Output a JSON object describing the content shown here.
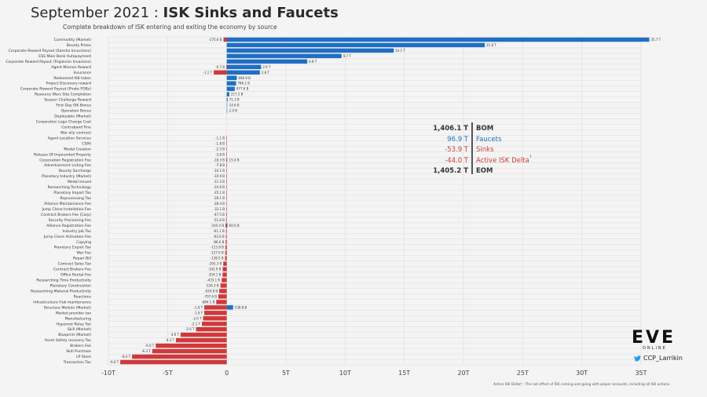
{
  "header": {
    "title_prefix": "September 2021 : ",
    "title_bold": "ISK Sinks and Faucets",
    "subtitle": "Complete breakdown of ISK entering and exiting the economy by source"
  },
  "summary": {
    "rows": [
      {
        "value": "1,406.1 T",
        "label": "BOM",
        "color": "#333333"
      },
      {
        "value": "96.9 T",
        "label": "Faucets",
        "color": "#1f6fc5"
      },
      {
        "value": "-53.9 T",
        "label": "Sinks",
        "color": "#d0393b"
      },
      {
        "value": "-44.0 T",
        "label": "Active ISK Delta",
        "sup": "†",
        "color": "#d0393b"
      },
      {
        "value": "1,405.2 T",
        "label": "EOM",
        "color": "#333333"
      }
    ]
  },
  "branding": {
    "logo": "EVE",
    "logo_sub": "ONLINE",
    "handle": "CCP_Larrikin",
    "handle_icon": "twitter-bird-icon"
  },
  "footnote": "Active ISK Delta† : The net effect of ISK coming and going with player accounts, including all ISK actions.",
  "colors": {
    "faucet": "#1f6fc5",
    "sink": "#d0393b",
    "grid": "#dcdcdc",
    "background": "#f4f4f4"
  },
  "chart_data": {
    "type": "bar",
    "orientation": "horizontal",
    "units": "trillions ISK",
    "xlim": [
      -10,
      35
    ],
    "xticks": [
      -10,
      -5,
      0,
      5,
      10,
      15,
      20,
      25,
      30,
      35
    ],
    "xtick_labels": [
      "-10T",
      "-5T",
      "0",
      "5T",
      "10T",
      "15T",
      "20T",
      "25T",
      "30T",
      "35T"
    ],
    "grid": true,
    "rows": [
      {
        "name": "Commodity (Market)",
        "faucet": 35.7,
        "faucet_label": "35.7 T",
        "sink": -0.2756,
        "sink_label": "-275.6 B"
      },
      {
        "name": "Bounty Prizes",
        "faucet": 21.8,
        "faucet_label": "21.8 T"
      },
      {
        "name": "Corporate Reward Payout (Sansha Incursions)",
        "faucet": 14.1,
        "faucet_label": "14.1 T"
      },
      {
        "name": "ESS Main Bank Autopayment",
        "faucet": 9.7,
        "faucet_label": "9.7 T"
      },
      {
        "name": "Corporate Reward Payout (Triglavian Invasions)",
        "faucet": 6.8,
        "faucet_label": "6.8 T"
      },
      {
        "name": "Agent Mission Reward",
        "faucet": 2.9,
        "faucet_label": "2.9 T",
        "sink": -0.0007,
        "sink_label": "-0.7 B"
      },
      {
        "name": "Insurance",
        "faucet": 2.8,
        "faucet_label": "2.8 T",
        "sink": -1.1,
        "sink_label": "-1.1 T"
      },
      {
        "name": "Redeemed ISK token",
        "faucet": 0.8469,
        "faucet_label": "846.9 B"
      },
      {
        "name": "Project Discovery reward",
        "faucet": 0.7861,
        "faucet_label": "786.1 B"
      },
      {
        "name": "Corporate Reward Payout (Pirate FOBs)",
        "faucet": 0.6776,
        "faucet_label": "677.6 B"
      },
      {
        "name": "Resource Wars Site Completion",
        "faucet": 0.2172,
        "faucet_label": "217.2 B"
      },
      {
        "name": "Season Challenge Reward",
        "faucet": 0.0713,
        "faucet_label": "71.3 B"
      },
      {
        "name": "First Day ISK Bonus",
        "faucet": 0.0146,
        "faucet_label": "14.6 B"
      },
      {
        "name": "Operation Bonus",
        "faucet": 0.002,
        "faucet_label": "2.0 B"
      },
      {
        "name": "Deployable (Market)"
      },
      {
        "name": "Corporation Logo Change Cost"
      },
      {
        "name": "Contraband Fine"
      },
      {
        "name": "War ally contract"
      },
      {
        "name": "Agent Location Services",
        "sink": -0.0011,
        "sink_label": "-1.1 B"
      },
      {
        "name": "CSPA",
        "sink": -0.0018,
        "sink_label": "-1.8 B"
      },
      {
        "name": "Medal Creation",
        "sink": -0.0023,
        "sink_label": "-2.3 B"
      },
      {
        "name": "Release Of Impounded Property",
        "sink": -0.0038,
        "sink_label": "-3.8 B"
      },
      {
        "name": "Corporation Registration Fee",
        "sink": -0.0183,
        "sink_label": "-18.3 B",
        "faucet": 0.0154,
        "faucet_label": "15.4 B"
      },
      {
        "name": "Advertisement Listing Fee",
        "sink": -0.0078,
        "sink_label": "-7.8 B"
      },
      {
        "name": "Bounty Surcharge",
        "sink": -0.0101,
        "sink_label": "-10.1 B"
      },
      {
        "name": "Planetary Industry (Market)",
        "sink": -0.0109,
        "sink_label": "-10.9 B"
      },
      {
        "name": "Medal Issued",
        "sink": -0.0112,
        "sink_label": "-11.2 B"
      },
      {
        "name": "Researching Technology",
        "sink": -0.0249,
        "sink_label": "-24.9 B"
      },
      {
        "name": "Planetary Import Tax",
        "sink": -0.0251,
        "sink_label": "-25.1 B"
      },
      {
        "name": "Reprocessing Tax",
        "sink": -0.0281,
        "sink_label": "-28.1 B"
      },
      {
        "name": "Alliance Maintainance Fee",
        "sink": -0.0284,
        "sink_label": "-28.4 B"
      },
      {
        "name": "Jump Clone Installation Fee",
        "sink": -0.0331,
        "sink_label": "-33.1 B"
      },
      {
        "name": "Contract Brokers Fee (Corp)",
        "sink": -0.0475,
        "sink_label": "-47.5 B"
      },
      {
        "name": "Security Processing Fee",
        "sink": -0.0518,
        "sink_label": "-51.8 B"
      },
      {
        "name": "Alliance Registration Fee",
        "sink": -0.105,
        "sink_label": "-105.0 B",
        "faucet": 0.06,
        "faucet_label": "60.0 B"
      },
      {
        "name": "Industry Job Tax",
        "sink": -0.0611,
        "sink_label": "-61.1 B"
      },
      {
        "name": "Jump Clone Activation Fee",
        "sink": -0.0626,
        "sink_label": "-62.6 B"
      },
      {
        "name": "Copying",
        "sink": -0.0866,
        "sink_label": "-86.6 B"
      },
      {
        "name": "Planetary Export Tax",
        "sink": -0.1138,
        "sink_label": "-113.8 B"
      },
      {
        "name": "War Fee",
        "sink": -0.1276,
        "sink_label": "-127.6 B"
      },
      {
        "name": "Repair Bill",
        "sink": -0.1385,
        "sink_label": "-138.5 B"
      },
      {
        "name": "Contract Sales Tax",
        "sink": -0.2953,
        "sink_label": "-295.3 B"
      },
      {
        "name": "Contract Brokers Fee",
        "sink": -0.3429,
        "sink_label": "-342.9 B"
      },
      {
        "name": "Office Rental Fee",
        "sink": -0.3541,
        "sink_label": "-354.1 B"
      },
      {
        "name": "Researching Time Productivity",
        "sink": -0.4331,
        "sink_label": "-433.1 B"
      },
      {
        "name": "Planetary Construction",
        "sink": -0.5343,
        "sink_label": "-534.3 B"
      },
      {
        "name": "Researching Material Productivity",
        "sink": -0.6348,
        "sink_label": "-634.8 B"
      },
      {
        "name": "Reactions",
        "sink": -0.7076,
        "sink_label": "-707.6 B"
      },
      {
        "name": "Infrastructure Hub maintenance",
        "sink": -0.8841,
        "sink_label": "-884.1 B"
      },
      {
        "name": "Structure Module (Market)",
        "sink": -1.9,
        "sink_label": "-1.9 T",
        "faucet": 0.5388,
        "faucet_label": "538.8 B"
      },
      {
        "name": "Market provider tax",
        "sink": -1.9,
        "sink_label": "-1.9 T"
      },
      {
        "name": "Manufacturing",
        "sink": -2.0,
        "sink_label": "-2.0 T"
      },
      {
        "name": "Hypernet Relay Tax",
        "sink": -2.1,
        "sink_label": "-2.1 T"
      },
      {
        "name": "Skill (Market)",
        "sink": -2.6,
        "sink_label": "-2.6 T"
      },
      {
        "name": "Blueprint (Market)",
        "sink": -3.9,
        "sink_label": "-3.9 T"
      },
      {
        "name": "Asset Safety recovery Tax",
        "sink": -4.3,
        "sink_label": "-4.3 T"
      },
      {
        "name": "Brokers Fee",
        "sink": -6.0,
        "sink_label": "-6.0 T"
      },
      {
        "name": "Skill Purchase",
        "sink": -6.3,
        "sink_label": "-6.3 T"
      },
      {
        "name": "LP Store",
        "sink": -8.0,
        "sink_label": "-8.0 T"
      },
      {
        "name": "Transaction Tax",
        "sink": -9.0,
        "sink_label": "-9.0 T"
      }
    ]
  }
}
